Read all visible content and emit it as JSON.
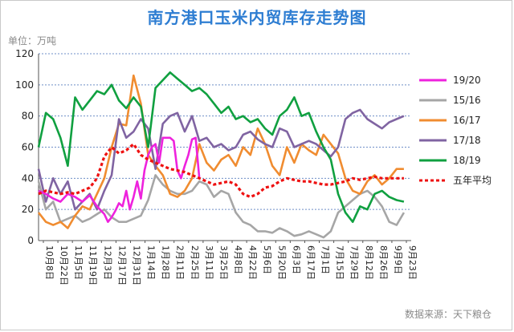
{
  "chart_data": {
    "type": "line",
    "title": "南方港口玉米内贸库存走势图",
    "unit_label": "单位：万吨",
    "source": "数据来源：天下粮仓",
    "ylim": [
      0,
      120
    ],
    "yticks": [
      0,
      20,
      40,
      60,
      80,
      100,
      120
    ],
    "x_labels": [
      "10月8日",
      "10月22日",
      "11月5日",
      "11月19日",
      "12月3日",
      "12月17日",
      "12月31日",
      "1月14日",
      "1月28日",
      "2月11日",
      "2月25日",
      "3月11日",
      "3月25日",
      "4月8日",
      "4月22日",
      "5月6日",
      "5月20日",
      "6月3日",
      "6月17日",
      "7月1日",
      "7月15日",
      "7月29日",
      "8月12日",
      "8月26日",
      "9月9日",
      "9月23日"
    ],
    "x_range": [
      0,
      51
    ],
    "legend_position": "right",
    "series": [
      {
        "name": "19/20",
        "color": "#ee22dd",
        "dash": false,
        "x": [
          0,
          1,
          2,
          3,
          4,
          5,
          6,
          7,
          8,
          9,
          9.5,
          10,
          10.5,
          11,
          11.5,
          12,
          12.5,
          13,
          13.5,
          14,
          14.5,
          15,
          15.5,
          16,
          16.5,
          17,
          17.5,
          18,
          18.5,
          19,
          19.5,
          20,
          20.5,
          21,
          21.5,
          22
        ],
        "y": [
          32,
          30,
          27,
          25,
          30,
          28,
          25,
          29,
          22,
          17,
          12,
          15,
          19,
          24,
          22,
          32,
          20,
          28,
          38,
          27,
          45,
          55,
          60,
          62,
          50,
          66,
          66,
          66,
          64,
          45,
          40,
          48,
          55,
          65,
          66,
          40
        ]
      },
      {
        "name": "15/16",
        "color": "#a6a6a6",
        "dash": false,
        "x": [
          0,
          1,
          2,
          3,
          4,
          5,
          6,
          7,
          8,
          9,
          10,
          11,
          12,
          13,
          14,
          15,
          16,
          17,
          18,
          19,
          20,
          21,
          22,
          23,
          24,
          25,
          26,
          27,
          28,
          29,
          30,
          31,
          32,
          33,
          34,
          35,
          36,
          37,
          38,
          39,
          40,
          41,
          42,
          43,
          44,
          45,
          46,
          47,
          48,
          49,
          50
        ],
        "y": [
          38,
          20,
          25,
          12,
          14,
          16,
          12,
          14,
          17,
          20,
          15,
          12,
          12,
          14,
          16,
          26,
          42,
          36,
          32,
          30,
          30,
          32,
          38,
          36,
          28,
          32,
          30,
          18,
          12,
          10,
          6,
          6,
          5,
          8,
          6,
          3,
          4,
          6,
          4,
          2,
          6,
          18,
          22,
          26,
          30,
          32,
          28,
          22,
          12,
          10,
          18
        ]
      },
      {
        "name": "16/17",
        "color": "#f08c30",
        "dash": false,
        "x": [
          0,
          1,
          2,
          3,
          4,
          5,
          6,
          7,
          8,
          9,
          10,
          11,
          12,
          13,
          14,
          15,
          16,
          17,
          18,
          19,
          20,
          21,
          22,
          23,
          24,
          25,
          26,
          27,
          28,
          29,
          30,
          31,
          32,
          33,
          34,
          35,
          36,
          37,
          38,
          39,
          40,
          41,
          42,
          43,
          44,
          45,
          46,
          47,
          48,
          49,
          50
        ],
        "y": [
          18,
          12,
          10,
          12,
          8,
          16,
          22,
          20,
          30,
          40,
          60,
          75,
          74,
          106,
          88,
          55,
          48,
          42,
          30,
          28,
          32,
          40,
          62,
          50,
          45,
          52,
          55,
          48,
          60,
          55,
          72,
          62,
          48,
          42,
          60,
          50,
          62,
          58,
          55,
          68,
          62,
          56,
          40,
          32,
          30,
          38,
          42,
          36,
          40,
          46,
          46
        ]
      },
      {
        "name": "17/18",
        "color": "#8064a2",
        "dash": false,
        "x": [
          0,
          1,
          2,
          3,
          4,
          5,
          6,
          7,
          8,
          9,
          10,
          11,
          12,
          13,
          14,
          15,
          16,
          17,
          18,
          19,
          20,
          21,
          22,
          23,
          24,
          25,
          26,
          27,
          28,
          29,
          30,
          31,
          32,
          33,
          34,
          35,
          36,
          37,
          38,
          39,
          40,
          41,
          42,
          43,
          44,
          45,
          46,
          47,
          48,
          49,
          50
        ],
        "y": [
          46,
          25,
          40,
          30,
          38,
          20,
          25,
          30,
          20,
          32,
          42,
          78,
          66,
          70,
          78,
          72,
          46,
          75,
          80,
          82,
          70,
          80,
          64,
          66,
          60,
          62,
          58,
          60,
          68,
          70,
          65,
          62,
          60,
          72,
          70,
          60,
          62,
          64,
          62,
          58,
          54,
          60,
          78,
          82,
          84,
          78,
          75,
          72,
          76,
          78,
          80
        ]
      },
      {
        "name": "18/19",
        "color": "#10a040",
        "dash": false,
        "x": [
          0,
          1,
          2,
          3,
          4,
          5,
          6,
          7,
          8,
          9,
          10,
          11,
          12,
          13,
          14,
          15,
          16,
          17,
          18,
          19,
          20,
          21,
          22,
          23,
          24,
          25,
          26,
          27,
          28,
          29,
          30,
          31,
          32,
          33,
          34,
          35,
          36,
          37,
          38,
          39,
          40,
          41,
          42,
          43,
          44,
          45,
          46,
          47,
          48,
          49,
          50
        ],
        "y": [
          60,
          82,
          78,
          66,
          48,
          92,
          84,
          90,
          96,
          94,
          100,
          90,
          85,
          92,
          86,
          60,
          98,
          103,
          108,
          104,
          100,
          96,
          98,
          94,
          88,
          82,
          86,
          78,
          80,
          76,
          78,
          72,
          68,
          80,
          84,
          92,
          80,
          82,
          70,
          60,
          52,
          30,
          18,
          12,
          22,
          20,
          30,
          32,
          28,
          26,
          25
        ]
      },
      {
        "name": "五年平均",
        "color": "#ee1111",
        "dash": true,
        "x": [
          0,
          1,
          2,
          3,
          4,
          5,
          6,
          7,
          8,
          9,
          10,
          11,
          12,
          13,
          14,
          15,
          16,
          17,
          18,
          19,
          20,
          21,
          22,
          23,
          24,
          25,
          26,
          27,
          28,
          29,
          30,
          31,
          32,
          33,
          34,
          35,
          36,
          37,
          38,
          39,
          40,
          41,
          42,
          43,
          44,
          45,
          46,
          47,
          48,
          49,
          50
        ],
        "y": [
          30,
          32,
          31,
          30,
          31,
          30,
          32,
          34,
          40,
          54,
          60,
          56,
          58,
          62,
          55,
          52,
          50,
          48,
          46,
          45,
          44,
          42,
          40,
          38,
          36,
          37,
          38,
          36,
          30,
          28,
          30,
          34,
          35,
          38,
          40,
          39,
          38,
          38,
          37,
          36,
          36,
          37,
          38,
          40,
          39,
          40,
          41,
          40,
          40,
          40,
          40
        ]
      }
    ]
  }
}
